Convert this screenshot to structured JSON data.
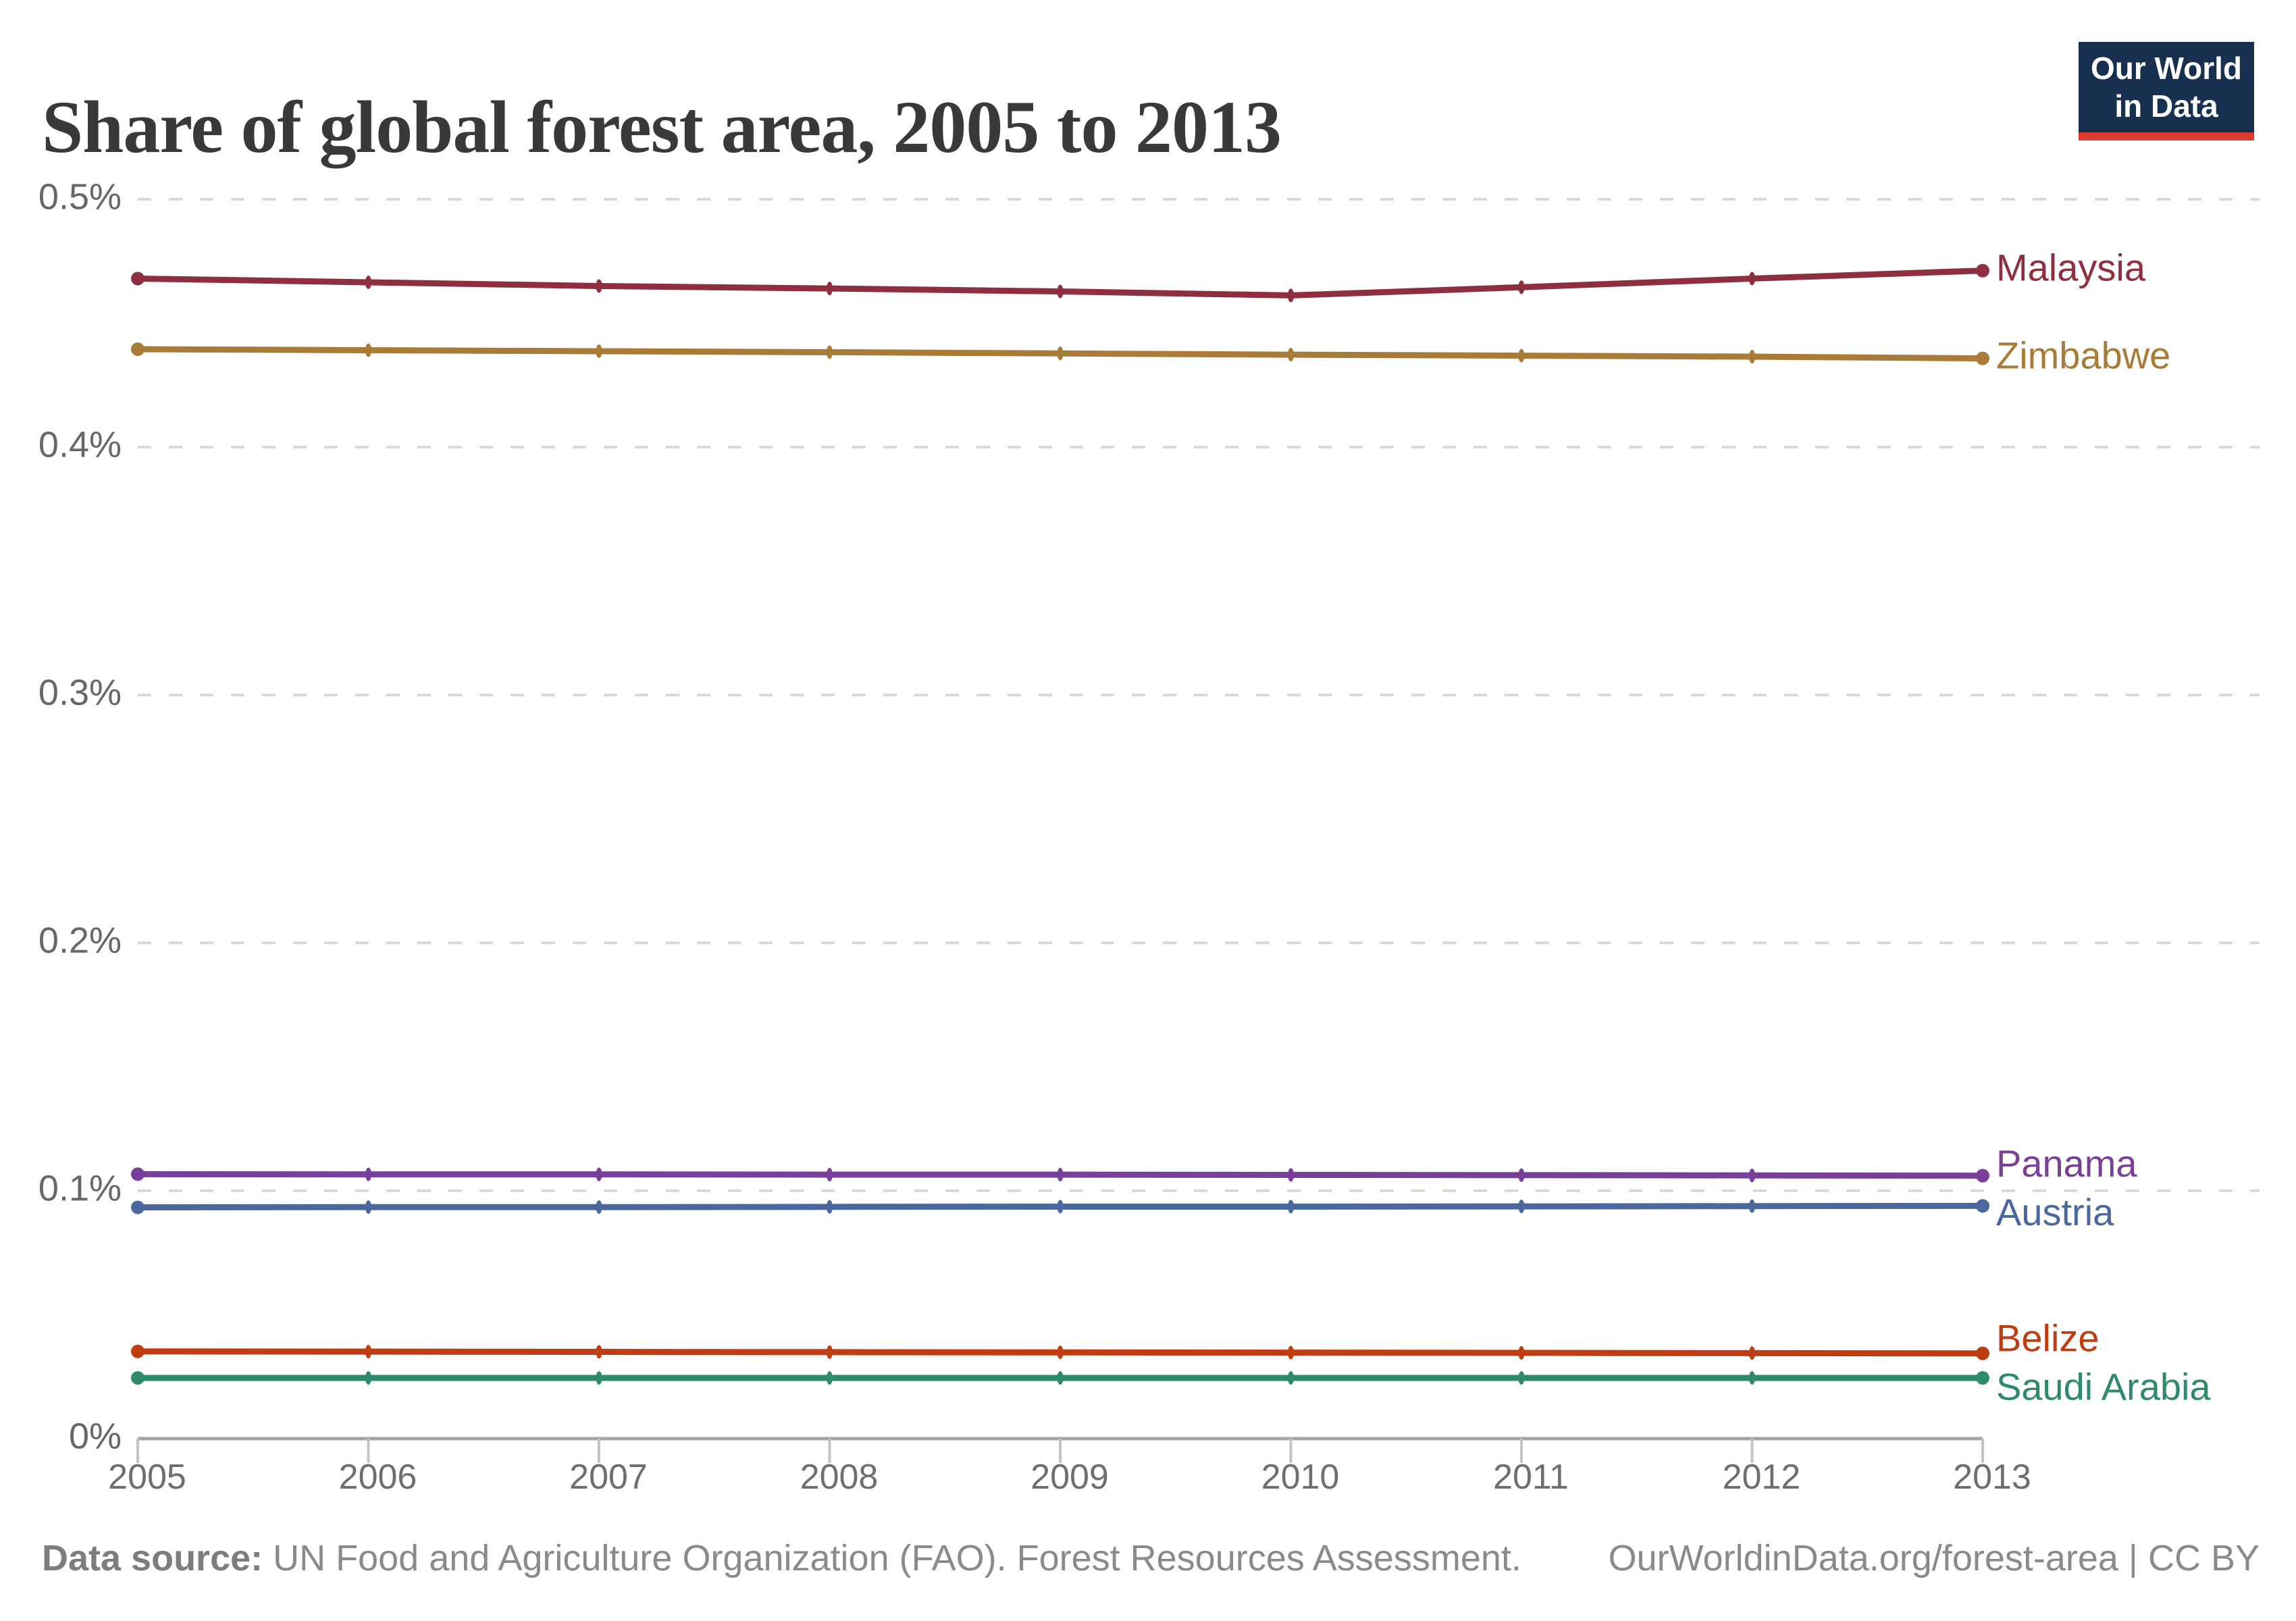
{
  "title": "Share of global forest area, 2005 to 2013",
  "logo": {
    "line1": "Our World",
    "line2": "in Data",
    "bg_color": "#17304f",
    "accent_color": "#dd3b32"
  },
  "footer": {
    "source_label": "Data source:",
    "source_rest": " UN Food and Agriculture Organization (FAO). Forest Resources Assessment.",
    "link": "OurWorldinData.org/forest-area | CC BY"
  },
  "chart_data": {
    "type": "line",
    "title": "Share of global forest area, 2005 to 2013",
    "x": [
      2005,
      2006,
      2007,
      2008,
      2009,
      2010,
      2011,
      2012,
      2013
    ],
    "x_tick_labels": [
      "2005",
      "2006",
      "2007",
      "2008",
      "2009",
      "2010",
      "2011",
      "2012",
      "2013"
    ],
    "ylim": [
      0,
      0.5
    ],
    "yticks": [
      0,
      0.1,
      0.2,
      0.3,
      0.4,
      0.5
    ],
    "ytick_labels": [
      "0%",
      "0.1%",
      "0.2%",
      "0.3%",
      "0.4%",
      "0.5%"
    ],
    "grid": "horizontal-dashed",
    "legend_position": "right-of-line-ends",
    "unit": "% of global forest area",
    "series": [
      {
        "name": "Malaysia",
        "color": "#8e2e3e",
        "values": [
          0.468,
          0.4665,
          0.465,
          0.464,
          0.4628,
          0.4612,
          0.4645,
          0.468,
          0.4712
        ]
      },
      {
        "name": "Zimbabwe",
        "color": "#a87c36",
        "values": [
          0.4395,
          0.4391,
          0.4387,
          0.4383,
          0.4378,
          0.4373,
          0.4369,
          0.4365,
          0.4358
        ]
      },
      {
        "name": "Panama",
        "color": "#7a3f9a",
        "values": [
          0.1067,
          0.1066,
          0.1066,
          0.1065,
          0.1065,
          0.1064,
          0.1063,
          0.1062,
          0.1061
        ]
      },
      {
        "name": "Austria",
        "color": "#4a689e",
        "values": [
          0.0933,
          0.0934,
          0.0934,
          0.0935,
          0.0936,
          0.0936,
          0.0937,
          0.0938,
          0.0939
        ]
      },
      {
        "name": "Belize",
        "color": "#c03d12",
        "values": [
          0.0352,
          0.0351,
          0.035,
          0.0349,
          0.0348,
          0.0347,
          0.0346,
          0.0345,
          0.0344
        ]
      },
      {
        "name": "Saudi Arabia",
        "color": "#2e8a68",
        "values": [
          0.0245,
          0.0245,
          0.0245,
          0.0245,
          0.0245,
          0.0245,
          0.0245,
          0.0245,
          0.0245
        ]
      }
    ],
    "grid_color": "#d9d9d9",
    "axis_color": "#a5a5a5",
    "tick_color": "#c4c4c4",
    "ytick_label_color": "#676767",
    "xtick_label_color": "#6e6e6e"
  }
}
